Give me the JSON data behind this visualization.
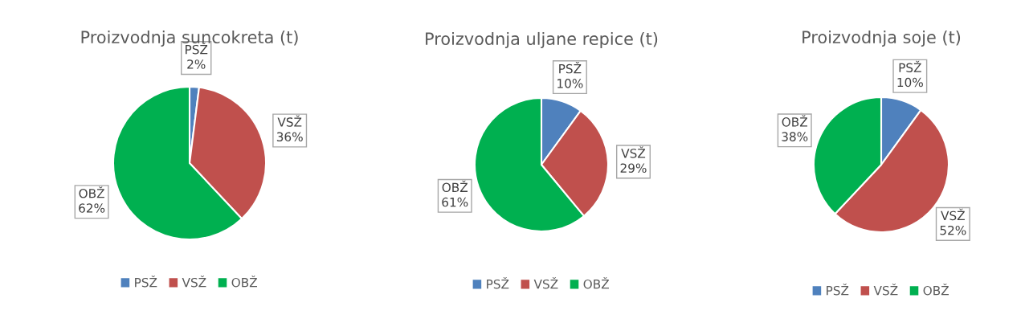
{
  "chart_data": [
    {
      "type": "pie",
      "title": "Proizvodnja suncokreta (t)",
      "categories": [
        "PSŽ",
        "VSŽ",
        "OBŽ"
      ],
      "values": [
        2,
        36,
        62
      ],
      "colors": [
        "#4f81bd",
        "#c0504d",
        "#00b050"
      ],
      "value_labels": [
        "PSŽ\n2%",
        "VSŽ\n36%",
        "OBŽ\n62%"
      ],
      "legend": "bottom"
    },
    {
      "type": "pie",
      "title": "Proizvodnja uljane repice (t)",
      "categories": [
        "PSŽ",
        "VSŽ",
        "OBŽ"
      ],
      "values": [
        10,
        29,
        61
      ],
      "colors": [
        "#4f81bd",
        "#c0504d",
        "#00b050"
      ],
      "value_labels": [
        "PSŽ\n10%",
        "VSŽ\n29%",
        "OBŽ\n61%"
      ],
      "legend": "bottom"
    },
    {
      "type": "pie",
      "title": "Proizvodnja soje (t)",
      "categories": [
        "PSŽ",
        "VSŽ",
        "OBŽ"
      ],
      "values": [
        10,
        52,
        38
      ],
      "colors": [
        "#4f81bd",
        "#c0504d",
        "#00b050"
      ],
      "value_labels": [
        "PSŽ\n10%",
        "VSŽ\n52%",
        "OBŽ\n38%"
      ],
      "legend": "bottom"
    }
  ]
}
